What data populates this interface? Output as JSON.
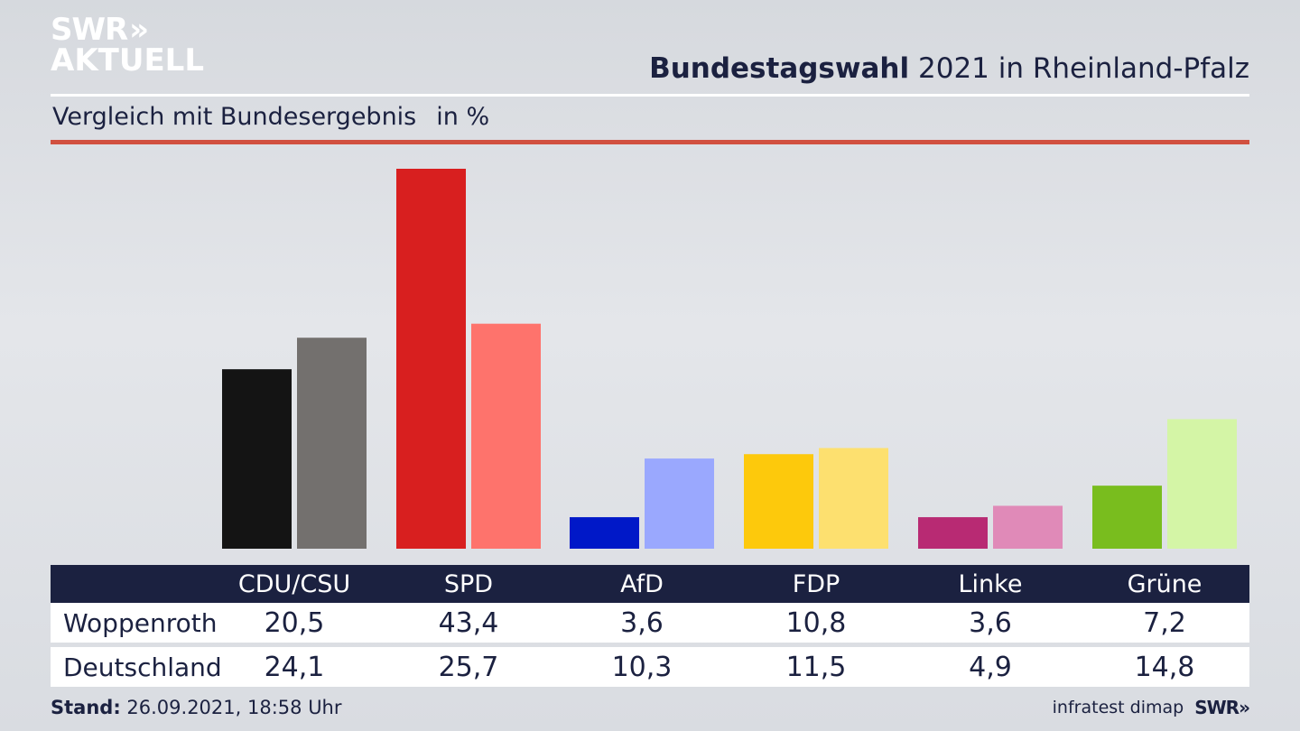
{
  "logo": {
    "line1": "SWR",
    "chevrons": "»",
    "line2": "AKTUELL"
  },
  "header": {
    "title_bold": "Bundestagswahl",
    "title_rest": "2021 in Rheinland-Pfalz"
  },
  "subtitle": {
    "text": "Vergleich mit Bundesergebnis",
    "unit": "in %"
  },
  "colors": {
    "header_text": "#1b2140",
    "red_rule": "#d1503f",
    "table_header_bg": "#1b2140"
  },
  "chart_data": {
    "type": "bar",
    "categories": [
      "CDU/CSU",
      "SPD",
      "AfD",
      "FDP",
      "Linke",
      "Grüne"
    ],
    "series": [
      {
        "name": "Woppenroth",
        "values": [
          20.5,
          43.4,
          3.6,
          10.8,
          3.6,
          7.2
        ],
        "colors": [
          "#141414",
          "#d81f1f",
          "#0018c8",
          "#fdc90c",
          "#b82a73",
          "#79bd1e"
        ]
      },
      {
        "name": "Deutschland",
        "values": [
          24.1,
          25.7,
          10.3,
          11.5,
          4.9,
          14.8
        ],
        "colors": [
          "#73706e",
          "#fe736c",
          "#9aa8fe",
          "#fde06f",
          "#e08ab8",
          "#d4f5a6"
        ]
      }
    ],
    "ylim": [
      0,
      43.4
    ],
    "grid": false
  },
  "table": {
    "rows": [
      {
        "label": "Woppenroth",
        "values": [
          "20,5",
          "43,4",
          "3,6",
          "10,8",
          "3,6",
          "7,2"
        ]
      },
      {
        "label": "Deutschland",
        "values": [
          "24,1",
          "25,7",
          "10,3",
          "11,5",
          "4,9",
          "14,8"
        ]
      }
    ]
  },
  "footer": {
    "stand_label": "Stand:",
    "stand_value": "26.09.2021, 18:58 Uhr",
    "source": "infratest dimap",
    "brand": "SWR»"
  }
}
